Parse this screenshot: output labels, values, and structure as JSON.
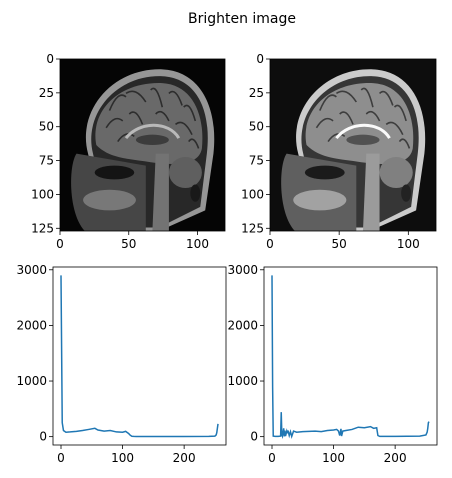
{
  "figure": {
    "title": "Brighten image"
  },
  "chart_data": [
    {
      "type": "image",
      "panel": "original-mri",
      "content": "sagittal MRI brain slice (original)",
      "x_ticks": [
        "0",
        "50",
        "100"
      ],
      "y_ticks": [
        "0",
        "25",
        "50",
        "75",
        "100",
        "125"
      ],
      "xlim": [
        0,
        120
      ],
      "ylim": [
        127,
        0
      ]
    },
    {
      "type": "image",
      "panel": "brightened-mri",
      "content": "sagittal MRI brain slice (brightened)",
      "x_ticks": [
        "0",
        "50",
        "100"
      ],
      "y_ticks": [
        "0",
        "25",
        "50",
        "75",
        "100",
        "125"
      ],
      "xlim": [
        0,
        120
      ],
      "ylim": [
        127,
        0
      ]
    },
    {
      "type": "line",
      "panel": "original-histogram",
      "x_ticks": [
        "0",
        "100",
        "200"
      ],
      "y_ticks": [
        "0",
        "1000",
        "2000",
        "3000"
      ],
      "xlim": [
        -13,
        268
      ],
      "ylim": [
        -150,
        3050
      ],
      "color": "#1f77b4",
      "x": [
        0,
        2,
        4,
        8,
        15,
        25,
        35,
        45,
        55,
        60,
        70,
        80,
        90,
        100,
        105,
        110,
        112,
        115,
        118,
        122,
        130,
        150,
        200,
        240,
        250,
        252,
        253,
        254,
        255
      ],
      "y": [
        2900,
        250,
        110,
        80,
        85,
        95,
        110,
        130,
        150,
        120,
        100,
        110,
        85,
        80,
        95,
        55,
        30,
        8,
        5,
        3,
        2,
        2,
        2,
        5,
        10,
        30,
        70,
        150,
        230
      ]
    },
    {
      "type": "line",
      "panel": "brightened-histogram",
      "x_ticks": [
        "0",
        "100",
        "200"
      ],
      "y_ticks": [
        "0",
        "1000",
        "2000",
        "3000"
      ],
      "xlim": [
        -13,
        268
      ],
      "ylim": [
        -150,
        3050
      ],
      "color": "#1f77b4",
      "x": [
        0,
        1,
        2,
        5,
        10,
        14,
        15,
        16,
        17,
        19,
        20,
        21,
        22,
        24,
        25,
        26,
        28,
        30,
        32,
        35,
        40,
        50,
        60,
        70,
        80,
        90,
        100,
        105,
        108,
        110,
        112,
        113,
        115,
        120,
        130,
        140,
        150,
        160,
        165,
        170,
        172,
        175,
        200,
        240,
        250,
        252,
        253,
        254,
        255
      ],
      "y": [
        2900,
        900,
        10,
        5,
        5,
        10,
        440,
        30,
        5,
        150,
        5,
        110,
        10,
        100,
        60,
        110,
        20,
        90,
        5,
        100,
        80,
        90,
        95,
        100,
        90,
        110,
        120,
        130,
        100,
        20,
        140,
        10,
        100,
        110,
        130,
        170,
        160,
        180,
        150,
        160,
        20,
        5,
        5,
        10,
        30,
        80,
        150,
        250,
        270
      ]
    }
  ]
}
